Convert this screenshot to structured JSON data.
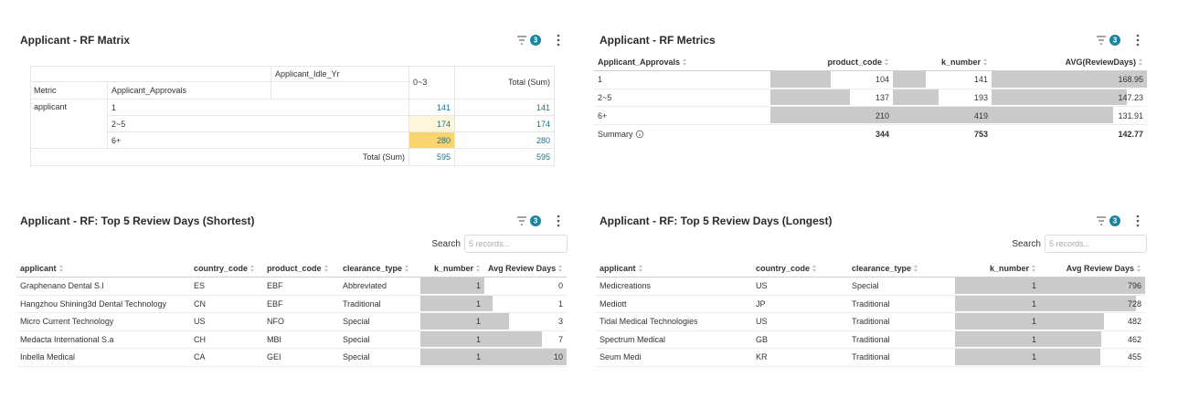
{
  "matrix": {
    "title": "Applicant - RF Matrix",
    "filter_count": 3,
    "column_header": "Applicant_Idle_Yr",
    "column_values": [
      "0~3"
    ],
    "total_label": "Total (Sum)",
    "row_headers": [
      "Metric",
      "Applicant_Approvals"
    ],
    "metric": "applicant",
    "rows": [
      {
        "label": "1",
        "values": [
          141
        ],
        "total": 141
      },
      {
        "label": "2~5",
        "values": [
          174
        ],
        "total": 174
      },
      {
        "label": "6+",
        "values": [
          280
        ],
        "total": 280
      }
    ],
    "total_row": {
      "label": "Total (Sum)",
      "values": [
        595
      ],
      "total": 595
    }
  },
  "metrics": {
    "title": "Applicant - RF Metrics",
    "filter_count": 3,
    "columns": [
      "Applicant_Approvals",
      "product_code",
      "k_number",
      "AVG(ReviewDays)"
    ],
    "rows": [
      [
        "1",
        104,
        141,
        168.95
      ],
      [
        "2~5",
        137,
        193,
        147.23
      ],
      [
        "6+",
        210,
        419,
        131.91
      ]
    ],
    "summary": {
      "label": "Summary",
      "values": [
        344,
        753,
        142.77
      ]
    }
  },
  "shortest": {
    "title": "Applicant - RF: Top 5 Review Days (Shortest)",
    "filter_count": 3,
    "search_label": "Search",
    "search_placeholder": "5 records...",
    "columns": [
      "applicant",
      "country_code",
      "product_code",
      "clearance_type",
      "k_number",
      "Avg Review Days"
    ],
    "rows": [
      [
        "Graphenano Dental S.l",
        "ES",
        "EBF",
        "Abbreviated",
        1,
        0
      ],
      [
        "Hangzhou Shining3d Dental Technology",
        "CN",
        "EBF",
        "Traditional",
        1,
        1
      ],
      [
        "Micro Current Technology",
        "US",
        "NFO",
        "Special",
        1,
        3
      ],
      [
        "Medacta International S.a",
        "CH",
        "MBI",
        "Special",
        1,
        7
      ],
      [
        "Inbella Medical",
        "CA",
        "GEI",
        "Special",
        1,
        10
      ]
    ]
  },
  "longest": {
    "title": "Applicant - RF: Top 5 Review Days (Longest)",
    "filter_count": 3,
    "search_label": "Search",
    "search_placeholder": "5 records...",
    "columns": [
      "applicant",
      "country_code",
      "clearance_type",
      "k_number",
      "Avg Review Days"
    ],
    "rows": [
      [
        "Medicreations",
        "US",
        "Special",
        1,
        796
      ],
      [
        "Mediott",
        "JP",
        "Traditional",
        1,
        728
      ],
      [
        "Tidal Medical Technologies",
        "US",
        "Traditional",
        1,
        482
      ],
      [
        "Spectrum Medical",
        "GB",
        "Traditional",
        1,
        462
      ],
      [
        "Seum Medi",
        "KR",
        "Traditional",
        1,
        455
      ]
    ]
  }
}
